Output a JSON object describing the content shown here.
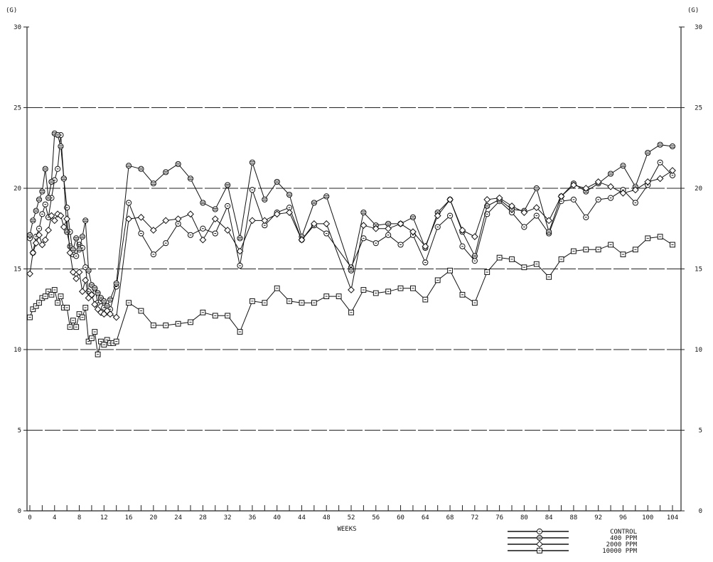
{
  "chart_data": {
    "type": "line",
    "unit_left": "(G)",
    "unit_right": "(G)",
    "xlabel": "WEEKS",
    "ylim": [
      0,
      30
    ],
    "y_ticks": [
      "0",
      "5",
      "10",
      "15",
      "20",
      "25",
      "30"
    ],
    "x_ticks": [
      "0",
      "4",
      "8",
      "12",
      "16",
      "20",
      "24",
      "28",
      "32",
      "36",
      "40",
      "44",
      "48",
      "52",
      "56",
      "60",
      "64",
      "68",
      "72",
      "76",
      "80",
      "84",
      "88",
      "92",
      "96",
      "100",
      "104"
    ],
    "grid": "horizontal",
    "legend_position": "bottom-right",
    "series": [
      {
        "name": "CONTROL",
        "marker": "circle",
        "x": [
          0,
          0.5,
          1,
          1.5,
          2,
          2.5,
          3,
          3.5,
          4,
          4.5,
          5,
          5.5,
          6,
          6.5,
          7,
          7.5,
          8,
          8.5,
          9,
          9.5,
          10,
          10.5,
          11,
          11.5,
          12,
          12.5,
          13,
          14,
          16,
          18,
          20,
          22,
          24,
          26,
          28,
          30,
          32,
          34,
          36,
          38,
          40,
          42,
          44,
          46,
          48,
          52,
          54,
          56,
          58,
          60,
          62,
          64,
          66,
          68,
          70,
          72,
          74,
          76,
          78,
          80,
          82,
          84,
          86,
          88,
          90,
          92,
          94,
          96,
          98,
          100,
          102,
          104
        ],
        "y": [
          16.9,
          16.0,
          17.0,
          17.5,
          18.4,
          19.0,
          18.2,
          19.4,
          20.5,
          21.2,
          23.3,
          20.6,
          18.8,
          17.3,
          15.9,
          15.8,
          16.5,
          16.3,
          15.1,
          13.6,
          13.4,
          13.8,
          12.9,
          13.0,
          12.6,
          12.3,
          12.5,
          13.9,
          19.1,
          17.2,
          15.9,
          16.6,
          17.8,
          17.1,
          17.5,
          17.2,
          18.9,
          15.2,
          19.9,
          17.7,
          18.5,
          18.8,
          16.8,
          17.7,
          17.2,
          15.1,
          16.9,
          16.6,
          17.1,
          16.5,
          17.1,
          15.4,
          17.6,
          18.3,
          16.4,
          15.5,
          18.4,
          19.2,
          18.5,
          17.6,
          18.3,
          17.2,
          19.2,
          19.3,
          18.2,
          19.3,
          19.4,
          19.9,
          19.1,
          20.2,
          21.6,
          20.8
        ]
      },
      {
        "name": "400 PPM",
        "marker": "circle-hatched",
        "x": [
          0,
          0.5,
          1,
          1.5,
          2,
          2.5,
          3,
          3.5,
          4,
          4.5,
          5,
          5.5,
          6,
          6.5,
          7,
          7.5,
          8,
          8.5,
          9,
          9.5,
          10,
          10.5,
          11,
          11.5,
          12,
          12.5,
          13,
          14,
          16,
          18,
          20,
          22,
          24,
          26,
          28,
          30,
          32,
          34,
          36,
          38,
          40,
          42,
          44,
          46,
          48,
          52,
          54,
          56,
          58,
          60,
          62,
          64,
          66,
          68,
          70,
          72,
          74,
          76,
          78,
          80,
          82,
          84,
          86,
          88,
          90,
          92,
          94,
          96,
          98,
          100,
          102,
          104
        ],
        "y": [
          17.1,
          18.0,
          18.6,
          19.3,
          19.8,
          21.2,
          19.4,
          20.4,
          23.4,
          23.3,
          22.6,
          20.6,
          17.3,
          16.4,
          16.2,
          16.9,
          16.2,
          17.0,
          18.0,
          14.9,
          14.0,
          13.8,
          13.5,
          13.2,
          13.0,
          12.7,
          13.1,
          14.1,
          21.4,
          21.2,
          20.3,
          21.0,
          21.5,
          20.6,
          19.1,
          18.7,
          20.2,
          16.9,
          21.6,
          19.3,
          20.4,
          19.6,
          17.0,
          19.1,
          19.5,
          14.9,
          18.5,
          17.7,
          17.8,
          17.8,
          18.2,
          16.3,
          18.5,
          19.3,
          17.3,
          15.8,
          18.9,
          19.3,
          18.7,
          18.6,
          20.0,
          17.3,
          19.5,
          20.3,
          19.8,
          20.3,
          20.9,
          21.4,
          20.1,
          22.2,
          22.7,
          22.6
        ]
      },
      {
        "name": "2000 PPM",
        "marker": "diamond",
        "x": [
          0,
          0.5,
          1,
          1.5,
          2,
          2.5,
          3,
          3.5,
          4,
          4.5,
          5,
          5.5,
          6,
          6.5,
          7,
          7.5,
          8,
          8.5,
          9,
          9.5,
          10,
          10.5,
          11,
          11.5,
          12,
          12.5,
          13,
          14,
          16,
          18,
          20,
          22,
          24,
          26,
          28,
          30,
          32,
          34,
          36,
          38,
          40,
          42,
          44,
          46,
          48,
          52,
          54,
          56,
          58,
          60,
          62,
          64,
          66,
          68,
          70,
          72,
          74,
          76,
          78,
          80,
          82,
          84,
          86,
          88,
          90,
          92,
          94,
          96,
          98,
          100,
          102,
          104
        ],
        "y": [
          14.7,
          16.0,
          16.6,
          17.1,
          16.5,
          16.8,
          17.4,
          18.3,
          18.0,
          18.4,
          18.3,
          17.6,
          18.1,
          16.0,
          14.8,
          14.4,
          14.8,
          13.6,
          14.3,
          13.2,
          13.4,
          12.8,
          12.5,
          12.3,
          12.2,
          12.4,
          12.2,
          12.0,
          18.1,
          18.2,
          17.4,
          18.0,
          18.1,
          18.4,
          16.8,
          18.1,
          17.4,
          16.1,
          18.0,
          18.0,
          18.4,
          18.5,
          16.8,
          17.8,
          17.8,
          13.7,
          17.7,
          17.5,
          17.5,
          17.8,
          17.3,
          16.4,
          18.3,
          19.3,
          17.4,
          17.0,
          19.3,
          19.4,
          18.9,
          18.5,
          18.8,
          18.0,
          19.5,
          20.2,
          20.0,
          20.4,
          20.1,
          19.7,
          19.9,
          20.4,
          20.6,
          21.1
        ]
      },
      {
        "name": "10000 PPM",
        "marker": "square",
        "x": [
          0,
          0.5,
          1,
          1.5,
          2,
          2.5,
          3,
          3.5,
          4,
          4.5,
          5,
          5.5,
          6,
          6.5,
          7,
          7.5,
          8,
          8.5,
          9,
          9.5,
          10,
          10.5,
          11,
          11.5,
          12,
          12.5,
          13,
          13.5,
          14,
          16,
          18,
          20,
          22,
          24,
          26,
          28,
          30,
          32,
          34,
          36,
          38,
          40,
          42,
          44,
          46,
          48,
          50,
          52,
          54,
          56,
          58,
          60,
          62,
          64,
          66,
          68,
          70,
          72,
          74,
          76,
          78,
          80,
          82,
          84,
          86,
          88,
          90,
          92,
          94,
          96,
          98,
          100,
          102,
          104
        ],
        "y": [
          12.0,
          12.5,
          12.7,
          12.9,
          13.2,
          13.3,
          13.6,
          13.4,
          13.7,
          12.9,
          13.3,
          12.6,
          12.6,
          11.4,
          11.8,
          11.4,
          12.2,
          12.0,
          12.6,
          10.5,
          10.7,
          11.1,
          9.7,
          10.5,
          10.3,
          10.6,
          10.4,
          10.4,
          10.5,
          12.9,
          12.4,
          11.5,
          11.5,
          11.6,
          11.7,
          12.3,
          12.1,
          12.1,
          11.1,
          13.0,
          12.9,
          13.8,
          13.0,
          12.9,
          12.9,
          13.3,
          13.3,
          12.3,
          13.7,
          13.5,
          13.6,
          13.8,
          13.8,
          13.1,
          14.3,
          14.9,
          13.4,
          12.9,
          14.8,
          15.7,
          15.6,
          15.1,
          15.3,
          14.5,
          15.6,
          16.1,
          16.2,
          16.2,
          16.5,
          15.9,
          16.2,
          16.9,
          17.0,
          16.5
        ]
      }
    ]
  },
  "legend": {
    "items": [
      "CONTROL",
      "400 PPM",
      "2000 PPM",
      "10000 PPM"
    ]
  }
}
